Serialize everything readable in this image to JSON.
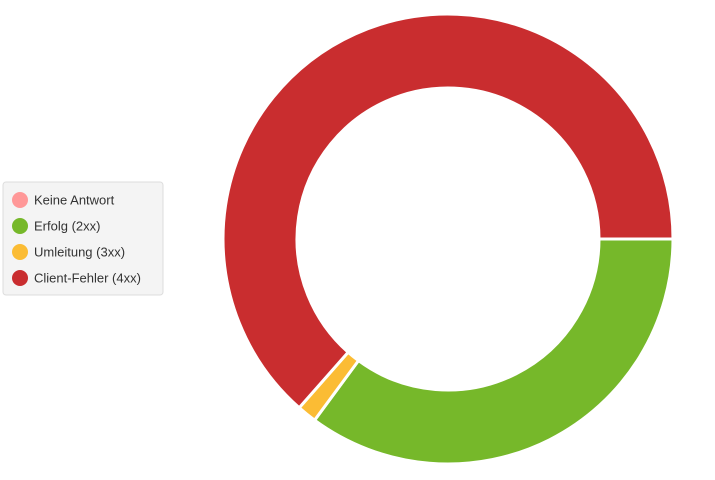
{
  "chart_data": {
    "type": "donut",
    "categories": [
      "Keine Antwort",
      "Erfolg (2xx)",
      "Umleitung (3xx)",
      "Client-Fehler (4xx)"
    ],
    "values": [
      0,
      35.1,
      1.4,
      63.5
    ],
    "colors": [
      "#ff9898",
      "#76b82a",
      "#fbbc34",
      "#c92d2f"
    ],
    "legend": "left"
  }
}
